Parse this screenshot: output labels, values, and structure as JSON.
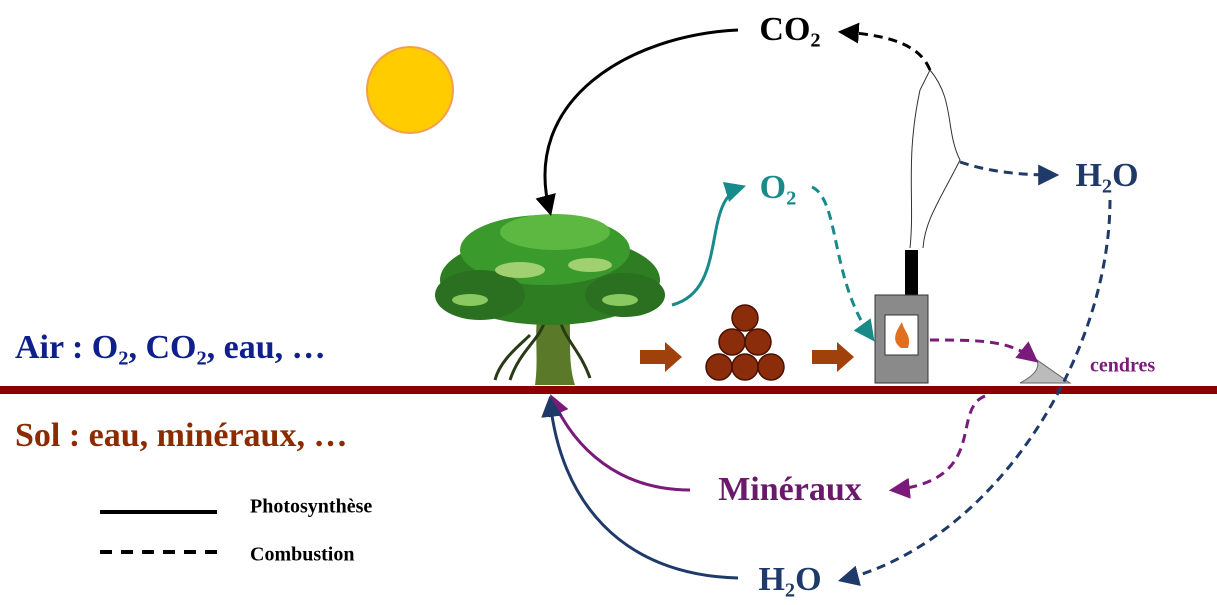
{
  "labels": {
    "co2_top": "CO₂",
    "o2": "O₂",
    "h2o_right": "H₂O",
    "air": "Air : O₂, CO₂, eau, …",
    "sol": "Sol : eau, minéraux, …",
    "cendres": "cendres",
    "mineraux": "Minéraux",
    "h2o_bottom": "H₂O"
  },
  "legend": {
    "items": [
      {
        "label": "Photosynthèse"
      },
      {
        "label": "Combustion"
      }
    ]
  }
}
